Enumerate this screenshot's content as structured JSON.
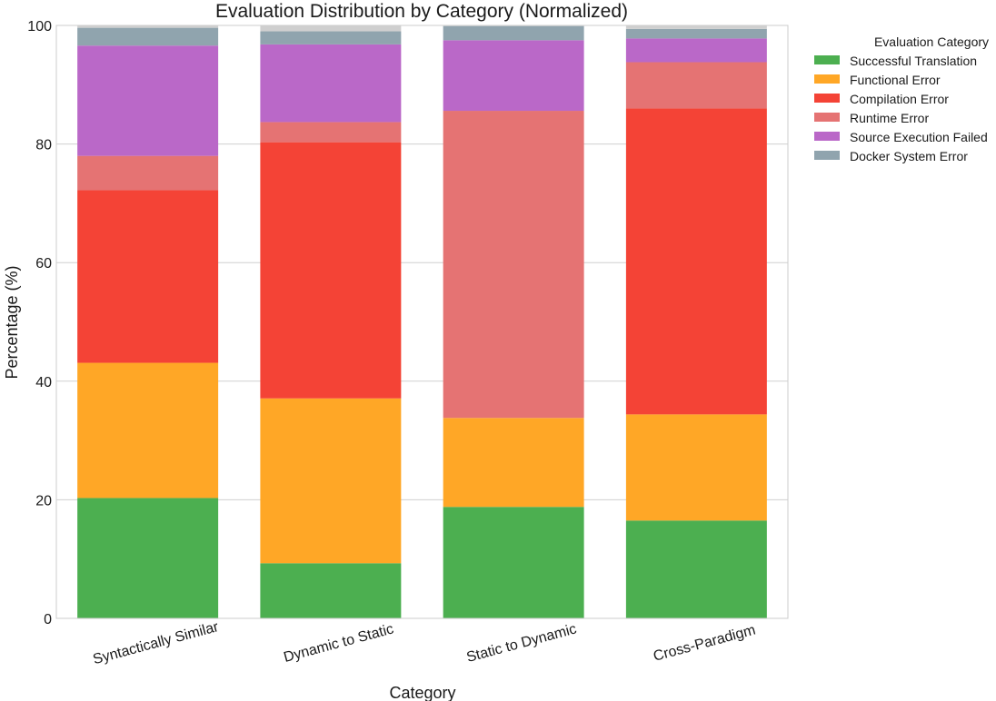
{
  "chart_data": {
    "type": "bar",
    "stacked": true,
    "title": "Evaluation Distribution by Category (Normalized)",
    "xlabel": "Category",
    "ylabel": "Percentage (%)",
    "ylim": [
      0,
      100
    ],
    "yticks": [
      0,
      20,
      40,
      60,
      80,
      100
    ],
    "grid": true,
    "legend_title": "Evaluation Category",
    "legend_position": "outside-top-right",
    "categories": [
      "Syntactically Similar",
      "Dynamic to Static",
      "Static to Dynamic",
      "Cross-Paradigm"
    ],
    "series": [
      {
        "name": "Successful Translation",
        "color": "#4caf50",
        "values": [
          20.3,
          9.3,
          18.8,
          16.5
        ]
      },
      {
        "name": "Functional Error",
        "color": "#ffa726",
        "values": [
          22.8,
          27.8,
          15.0,
          17.9
        ]
      },
      {
        "name": "Compilation Error",
        "color": "#f44336",
        "values": [
          29.1,
          43.2,
          0.0,
          51.6
        ]
      },
      {
        "name": "Runtime Error",
        "color": "#e57373",
        "values": [
          5.8,
          3.4,
          51.8,
          7.8
        ]
      },
      {
        "name": "Source Execution Failed",
        "color": "#ba68c8",
        "values": [
          18.6,
          13.1,
          11.9,
          4.0
        ]
      },
      {
        "name": "Docker System Error",
        "color": "#90a4ae",
        "values": [
          3.0,
          2.2,
          2.4,
          1.6
        ]
      }
    ],
    "residual_color": "#cfcfcf"
  }
}
